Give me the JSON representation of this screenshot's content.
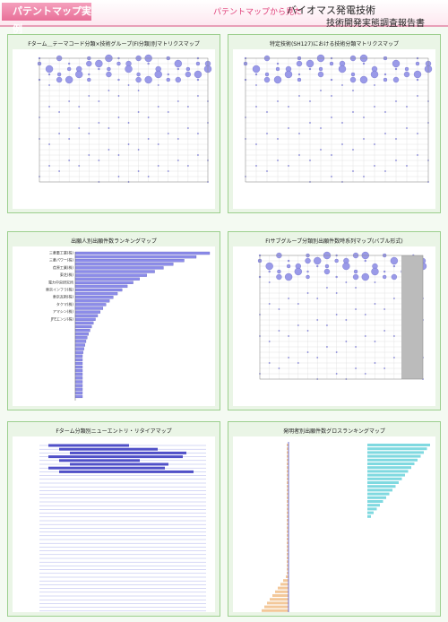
{
  "header": {
    "badge": "パテントマップ実例",
    "lead": "パテントマップから見た",
    "title": "バイオマス発電技術",
    "subtitle": "技術開発実態調査報告書"
  },
  "panels": [
    {
      "title": "Fターム＿テーマコード分類×技術グループ(FI分類)別マトリクスマップ"
    },
    {
      "title": "特定技術(SH127)における技術分類マトリクスマップ"
    },
    {
      "title": "出願人別出願件数ランキングマップ",
      "labels": [
        "三菱重工業(株)",
        "三菱パワー(株)",
        "荏原工業(株)",
        "東芝(株)",
        "電力中央研究所",
        "東京インフラ(株)",
        "東京瓦斯(株)",
        "タクマ(株)",
        "アマシン(株)",
        "JFEエンジ(株)"
      ]
    },
    {
      "title": "FIサブグループ分類別出願件数時系列マップ(バブル形式)"
    },
    {
      "title": "Fターム分類別ニューエントリ・リタイアマップ"
    },
    {
      "title": "発明者別出願件数グロスランキングマップ"
    }
  ]
}
